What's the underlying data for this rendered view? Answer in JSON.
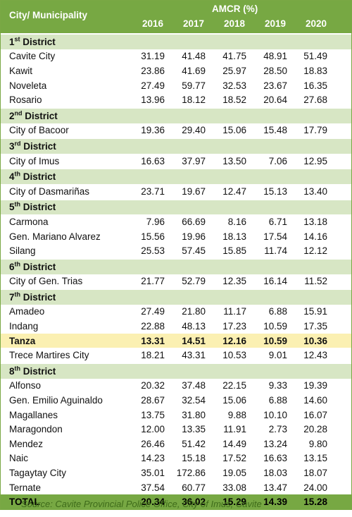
{
  "header": {
    "first_column": "City/ Municipality",
    "group": "AMCR (%)",
    "years": [
      "2016",
      "2017",
      "2018",
      "2019",
      "2020"
    ]
  },
  "sections": [
    {
      "district": "1st District",
      "rows": [
        {
          "name": "Cavite City",
          "values": [
            "31.19",
            "41.48",
            "41.75",
            "48.91",
            "51.49"
          ]
        },
        {
          "name": "Kawit",
          "values": [
            "23.86",
            "41.69",
            "25.97",
            "28.50",
            "18.83"
          ]
        },
        {
          "name": "Noveleta",
          "values": [
            "27.49",
            "59.77",
            "32.53",
            "23.67",
            "16.35"
          ]
        },
        {
          "name": "Rosario",
          "values": [
            "13.96",
            "18.12",
            "18.52",
            "20.64",
            "27.68"
          ]
        }
      ]
    },
    {
      "district": "2nd District",
      "rows": [
        {
          "name": "City of Bacoor",
          "values": [
            "19.36",
            "29.40",
            "15.06",
            "15.48",
            "17.79"
          ]
        }
      ]
    },
    {
      "district": "3rd District",
      "rows": [
        {
          "name": "City of Imus",
          "values": [
            "16.63",
            "37.97",
            "13.50",
            "7.06",
            "12.95"
          ]
        }
      ]
    },
    {
      "district": "4th District",
      "rows": [
        {
          "name": "City of Dasmariñas",
          "values": [
            "23.71",
            "19.67",
            "12.47",
            "15.13",
            "13.40"
          ]
        }
      ]
    },
    {
      "district": "5th District",
      "rows": [
        {
          "name": "Carmona",
          "values": [
            "7.96",
            "66.69",
            "8.16",
            "6.71",
            "13.18"
          ]
        },
        {
          "name": "Gen. Mariano Alvarez",
          "values": [
            "15.56",
            "19.96",
            "18.13",
            "17.54",
            "14.16"
          ]
        },
        {
          "name": "Silang",
          "values": [
            "25.53",
            "57.45",
            "15.85",
            "11.74",
            "12.12"
          ]
        }
      ]
    },
    {
      "district": "6th District",
      "rows": [
        {
          "name": "City of Gen. Trias",
          "values": [
            "21.77",
            "52.79",
            "12.35",
            "16.14",
            "11.52"
          ]
        }
      ]
    },
    {
      "district": "7th District",
      "rows": [
        {
          "name": "Amadeo",
          "values": [
            "27.49",
            "21.80",
            "11.17",
            "6.88",
            "15.91"
          ]
        },
        {
          "name": "Indang",
          "values": [
            "22.88",
            "48.13",
            "17.23",
            "10.59",
            "17.35"
          ]
        },
        {
          "name": "Tanza",
          "values": [
            "13.31",
            "14.51",
            "12.16",
            "10.59",
            "10.36"
          ],
          "highlighted": true
        },
        {
          "name": "Trece Martires City",
          "values": [
            "18.21",
            "43.31",
            "10.53",
            "9.01",
            "12.43"
          ]
        }
      ]
    },
    {
      "district": "8th District",
      "rows": [
        {
          "name": "Alfonso",
          "values": [
            "20.32",
            "37.48",
            "22.15",
            "9.33",
            "19.39"
          ]
        },
        {
          "name": "Gen. Emilio Aguinaldo",
          "values": [
            "28.67",
            "32.54",
            "15.06",
            "6.88",
            "14.60"
          ]
        },
        {
          "name": "Magallanes",
          "values": [
            "13.75",
            "31.80",
            "9.88",
            "10.10",
            "16.07"
          ]
        },
        {
          "name": "Maragondon",
          "values": [
            "12.00",
            "13.35",
            "11.91",
            "2.73",
            "20.28"
          ]
        },
        {
          "name": "Mendez",
          "values": [
            "26.46",
            "51.42",
            "14.49",
            "13.24",
            "9.80"
          ]
        },
        {
          "name": "Naic",
          "values": [
            "14.23",
            "15.18",
            "17.52",
            "16.63",
            "13.15"
          ]
        },
        {
          "name": "Tagaytay City",
          "values": [
            "35.01",
            "172.86",
            "19.05",
            "18.03",
            "18.07"
          ]
        },
        {
          "name": "Ternate",
          "values": [
            "37.54",
            "60.77",
            "33.08",
            "13.47",
            "24.00"
          ]
        }
      ]
    }
  ],
  "total": {
    "label": "TOTAL",
    "values": [
      "20.34",
      "36.02",
      "15.29",
      "14.39",
      "15.28"
    ]
  },
  "source": "Source: Cavite Provincial Police Office, City of Imus, Cavite"
}
